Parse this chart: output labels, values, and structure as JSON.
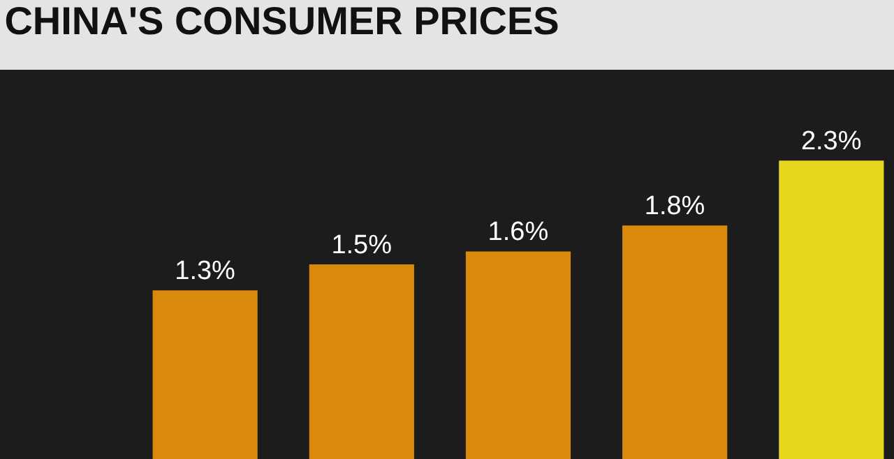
{
  "chart_data": {
    "type": "bar",
    "title": "CHINA'S CONSUMER PRICES",
    "categories": [
      null,
      null,
      null,
      null,
      null
    ],
    "values": [
      1.3,
      1.5,
      1.6,
      1.8,
      2.3
    ],
    "colors": [
      "#d9890b",
      "#d9890b",
      "#d9890b",
      "#d9890b",
      "#e6d61e"
    ],
    "value_labels": [
      "1.3%",
      "1.5%",
      "1.6%",
      "1.8%",
      "2.3%"
    ],
    "ylim": [
      0,
      3
    ],
    "tick_labels": false,
    "legend": false
  }
}
